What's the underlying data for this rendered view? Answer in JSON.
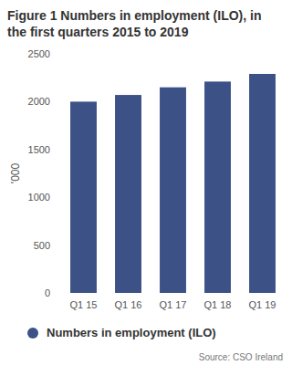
{
  "chart_data": {
    "type": "bar",
    "title": "Figure 1 Numbers in employment (ILO), in the first quarters 2015 to 2019",
    "y_label": "'000",
    "categories": [
      "Q1 15",
      "Q1 16",
      "Q1 17",
      "Q1 18",
      "Q1 19"
    ],
    "series": [
      {
        "name": "Numbers in employment (ILO)",
        "color": "#3c5186",
        "values": [
          2000,
          2070,
          2150,
          2210,
          2290
        ]
      }
    ],
    "ylim": [
      0,
      2500
    ],
    "yticks": [
      0,
      500,
      1000,
      1500,
      2000,
      2500
    ],
    "grid": false,
    "legend": "bottom",
    "annotations": [
      "Source: CSO Ireland"
    ]
  }
}
